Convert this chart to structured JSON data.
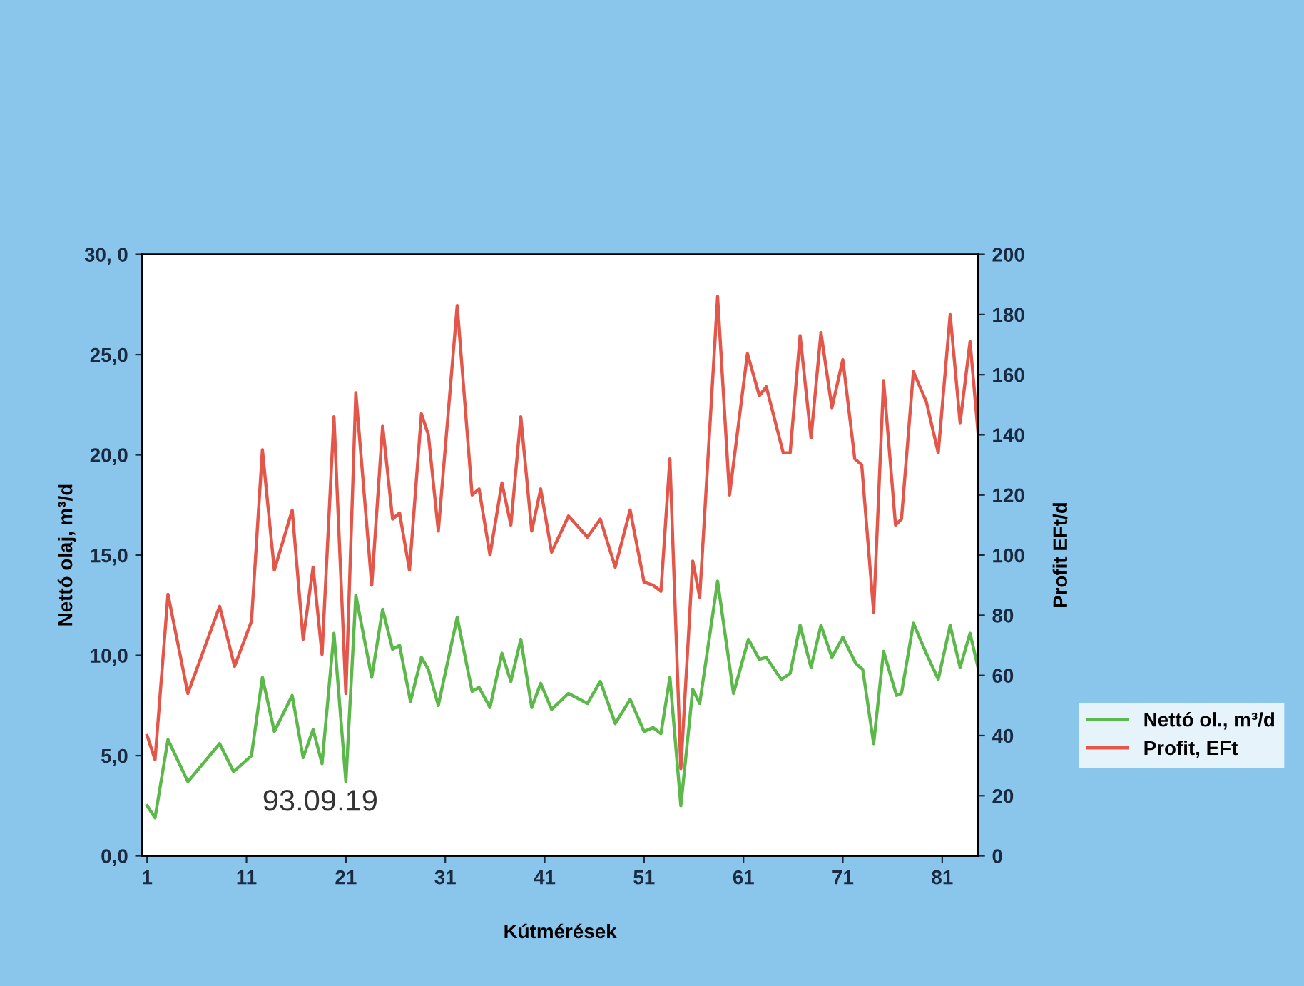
{
  "chart_data": {
    "type": "line",
    "xlabel": "Kútmérések",
    "ylabel": "Nettó olaj, m³/d",
    "y2label": "Profit EFt/d",
    "xlim": [
      0.5,
      84.6
    ],
    "xticks": [
      1,
      11,
      21,
      31,
      41,
      51,
      61,
      71,
      81
    ],
    "ylim": [
      0,
      30
    ],
    "yticks": [
      {
        "value": 0,
        "label": "0,0"
      },
      {
        "value": 5,
        "label": "5,0"
      },
      {
        "value": 10,
        "label": "10,0"
      },
      {
        "value": 15,
        "label": "15,0"
      },
      {
        "value": 20,
        "label": "20,0"
      },
      {
        "value": 25,
        "label": "25,0"
      },
      {
        "value": 30,
        "label": "30, 0"
      }
    ],
    "y2lim": [
      0,
      200
    ],
    "y2ticks": [
      0,
      20,
      40,
      60,
      80,
      100,
      120,
      140,
      160,
      180,
      200
    ],
    "grid": false,
    "legend": "right",
    "marker": "none",
    "line_style": "solid",
    "annotations": [
      "93.09.19"
    ],
    "series": [
      {
        "name": "Nettó ol., m³/d",
        "color": "#5cb84a",
        "x": [
          1.0,
          1.8,
          3.1,
          5.1,
          8.3,
          9.7,
          11.5,
          12.6,
          13.8,
          15.6,
          16.7,
          17.7,
          18.6,
          19.8,
          21.0,
          22.0,
          23.6,
          24.7,
          25.7,
          26.4,
          27.5,
          28.6,
          29.3,
          30.3,
          32.2,
          33.7,
          34.4,
          35.5,
          36.7,
          37.6,
          38.6,
          39.7,
          40.6,
          41.7,
          43.4,
          45.3,
          46.6,
          48.1,
          49.6,
          51.0,
          51.9,
          52.7,
          53.6,
          54.7,
          55.9,
          56.6,
          58.4,
          60.0,
          61.5,
          62.6,
          63.3,
          64.8,
          65.7,
          66.7,
          67.8,
          68.8,
          69.9,
          71.0,
          72.3,
          73.0,
          74.1,
          75.1,
          76.4,
          76.9,
          78.1,
          79.4,
          80.6,
          81.8,
          82.8,
          83.8,
          84.6
        ],
        "values": [
          2.5,
          1.9,
          5.8,
          3.7,
          5.6,
          4.2,
          5.0,
          8.9,
          6.2,
          8.0,
          4.9,
          6.3,
          4.6,
          11.1,
          3.7,
          13.0,
          8.9,
          12.3,
          10.3,
          10.5,
          7.7,
          9.9,
          9.3,
          7.5,
          11.9,
          8.2,
          8.4,
          7.4,
          10.1,
          8.7,
          10.8,
          7.4,
          8.6,
          7.3,
          8.1,
          7.6,
          8.7,
          6.6,
          7.8,
          6.2,
          6.4,
          6.1,
          8.9,
          2.5,
          8.3,
          7.6,
          13.7,
          8.1,
          10.8,
          9.8,
          9.9,
          8.8,
          9.1,
          11.5,
          9.4,
          11.5,
          9.9,
          10.9,
          9.6,
          9.3,
          5.6,
          10.2,
          8.0,
          8.1,
          11.6,
          10.1,
          8.8,
          11.5,
          9.4,
          11.1,
          9.4
        ]
      },
      {
        "name": "Profit, EFt",
        "color": "#e2574a",
        "axis": "y2",
        "x": [
          1.0,
          1.8,
          3.1,
          5.1,
          8.3,
          9.8,
          11.5,
          12.6,
          13.8,
          15.6,
          16.7,
          17.7,
          18.6,
          19.8,
          21.0,
          22.0,
          23.6,
          24.7,
          25.7,
          26.4,
          27.4,
          28.6,
          29.3,
          30.3,
          32.2,
          33.7,
          34.4,
          35.5,
          36.7,
          37.6,
          38.6,
          39.7,
          40.6,
          41.7,
          43.4,
          45.3,
          46.6,
          48.1,
          49.6,
          51.0,
          51.9,
          52.7,
          53.6,
          54.7,
          55.9,
          56.6,
          58.4,
          59.6,
          61.4,
          62.6,
          63.3,
          65.0,
          65.7,
          66.7,
          67.8,
          68.8,
          69.9,
          71.0,
          72.2,
          72.9,
          74.1,
          75.1,
          76.3,
          76.9,
          78.1,
          79.4,
          80.6,
          81.8,
          82.8,
          83.8,
          84.6
        ],
        "values": [
          40,
          32,
          87,
          54,
          83,
          63,
          78,
          135,
          95,
          115,
          72,
          96,
          67,
          146,
          54,
          154,
          90,
          143,
          112,
          114,
          95,
          147,
          140,
          108,
          183,
          120,
          122,
          100,
          124,
          110,
          146,
          108,
          122,
          101,
          113,
          106,
          112,
          96,
          115,
          91,
          90,
          88,
          132,
          29,
          98,
          86,
          186,
          120,
          167,
          153,
          156,
          134,
          134,
          173,
          139,
          174,
          149,
          165,
          132,
          130,
          81,
          158,
          110,
          112,
          161,
          151,
          134,
          180,
          144,
          171,
          141
        ]
      }
    ]
  }
}
